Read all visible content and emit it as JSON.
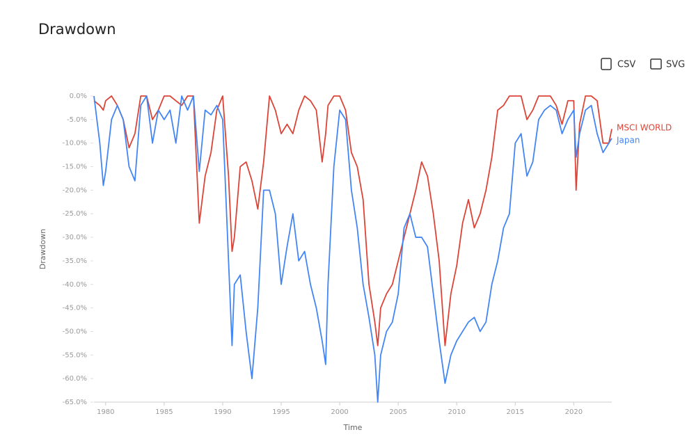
{
  "chart_data": {
    "type": "line",
    "title": "Drawdown",
    "x_label": "Time",
    "y_label": "Drawdown",
    "x": [
      1979,
      1979.5,
      1979.8,
      1980,
      1980.5,
      1981,
      1981.5,
      1982,
      1982.5,
      1983,
      1983.5,
      1984,
      1984.5,
      1985,
      1985.5,
      1986,
      1986.5,
      1987,
      1987.5,
      1988,
      1988.5,
      1989,
      1989.5,
      1990,
      1990.5,
      1990.8,
      1991,
      1991.5,
      1992,
      1992.5,
      1993,
      1993.5,
      1994,
      1994.5,
      1995,
      1995.5,
      1996,
      1996.5,
      1997,
      1997.5,
      1998,
      1998.5,
      1998.8,
      1999,
      1999.5,
      2000,
      2000.5,
      2001,
      2001.5,
      2002,
      2002.5,
      2003,
      2003.25,
      2003.5,
      2004,
      2004.5,
      2005,
      2005.5,
      2006,
      2006.5,
      2007,
      2007.5,
      2008,
      2008.5,
      2009,
      2009.5,
      2010,
      2010.5,
      2011,
      2011.5,
      2012,
      2012.5,
      2013,
      2013.5,
      2014,
      2014.5,
      2015,
      2015.5,
      2016,
      2016.5,
      2017,
      2017.5,
      2018,
      2018.5,
      2019,
      2019.5,
      2020,
      2020.2,
      2020.5,
      2021,
      2021.5,
      2022,
      2022.5,
      2023,
      2023.25
    ],
    "series": [
      {
        "name": "MSCI WORLD",
        "color": "#db4437",
        "values": [
          -1,
          -2,
          -3,
          -1,
          0,
          -2,
          -5,
          -11,
          -8,
          0,
          0,
          -5,
          -3,
          0,
          0,
          -1,
          -2,
          0,
          0,
          -27,
          -17,
          -12,
          -3,
          0,
          -17,
          -33,
          -30,
          -15,
          -14,
          -18,
          -24,
          -14,
          0,
          -3,
          -8,
          -6,
          -8,
          -3,
          0,
          -1,
          -3,
          -14,
          -8,
          -2,
          0,
          0,
          -3,
          -12,
          -15,
          -22,
          -40,
          -48,
          -53,
          -45,
          -42,
          -40,
          -35,
          -30,
          -25,
          -20,
          -14,
          -17,
          -25,
          -35,
          -53,
          -42,
          -36,
          -27,
          -22,
          -28,
          -25,
          -20,
          -13,
          -3,
          -2,
          0,
          0,
          0,
          -5,
          -3,
          0,
          0,
          0,
          -2,
          -6,
          -1,
          -1,
          -20,
          -6,
          0,
          0,
          -1,
          -10,
          -10,
          -7
        ]
      },
      {
        "name": "Japan",
        "color": "#4285f4",
        "values": [
          0,
          -10,
          -19,
          -16,
          -5,
          -2,
          -5,
          -15,
          -18,
          -2,
          0,
          -10,
          -3,
          -5,
          -3,
          -10,
          0,
          -3,
          0,
          -16,
          -3,
          -4,
          -2,
          -5,
          -35,
          -53,
          -40,
          -38,
          -50,
          -60,
          -45,
          -20,
          -20,
          -25,
          -40,
          -32,
          -25,
          -35,
          -33,
          -40,
          -45,
          -52,
          -57,
          -40,
          -15,
          -3,
          -5,
          -20,
          -28,
          -40,
          -47,
          -55,
          -65,
          -55,
          -50,
          -48,
          -42,
          -28,
          -25,
          -30,
          -30,
          -32,
          -42,
          -52,
          -61,
          -55,
          -52,
          -50,
          -48,
          -47,
          -50,
          -48,
          -40,
          -35,
          -28,
          -25,
          -10,
          -8,
          -17,
          -14,
          -5,
          -3,
          -2,
          -3,
          -8,
          -5,
          -3,
          -13,
          -8,
          -3,
          -2,
          -8,
          -12,
          -10,
          -9
        ]
      }
    ],
    "xlim": [
      1979,
      2023.25
    ],
    "xticks": [
      1980,
      1985,
      1990,
      1995,
      2000,
      2005,
      2010,
      2015,
      2020
    ],
    "ylim": [
      -65,
      0
    ],
    "yticks": [
      {
        "value": 0,
        "label": "0.0%"
      },
      {
        "value": -5,
        "label": "-5.0%"
      },
      {
        "value": -10,
        "label": "-10.0%"
      },
      {
        "value": -15,
        "label": "-15.0%"
      },
      {
        "value": -20,
        "label": "-20.0%"
      },
      {
        "value": -25,
        "label": "-25.0%"
      },
      {
        "value": -30,
        "label": "-30.0%"
      },
      {
        "value": -35,
        "label": "-35.0%"
      },
      {
        "value": -40,
        "label": "-40.0%"
      },
      {
        "value": -45,
        "label": "-45.0%"
      },
      {
        "value": -50,
        "label": "-50.0%"
      },
      {
        "value": -55,
        "label": "-55.0%"
      },
      {
        "value": -60,
        "label": "-60.0%"
      },
      {
        "value": -65,
        "label": "-65.0%"
      }
    ],
    "grid": false
  },
  "toolbar": {
    "buttons": [
      "CSV",
      "SVG"
    ]
  }
}
